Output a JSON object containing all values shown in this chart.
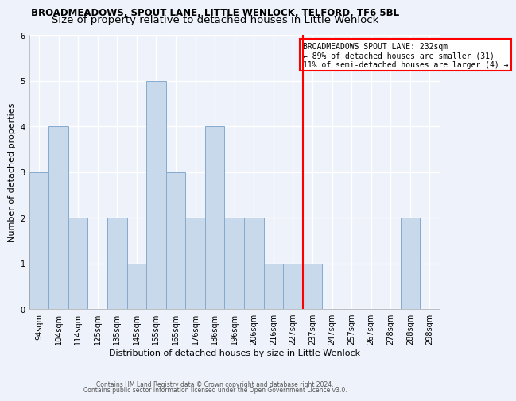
{
  "title1": "BROADMEADOWS, SPOUT LANE, LITTLE WENLOCK, TELFORD, TF6 5BL",
  "title2": "Size of property relative to detached houses in Little Wenlock",
  "xlabel": "Distribution of detached houses by size in Little Wenlock",
  "ylabel": "Number of detached properties",
  "categories": [
    "94sqm",
    "104sqm",
    "114sqm",
    "125sqm",
    "135sqm",
    "145sqm",
    "155sqm",
    "165sqm",
    "176sqm",
    "186sqm",
    "196sqm",
    "206sqm",
    "216sqm",
    "227sqm",
    "237sqm",
    "247sqm",
    "257sqm",
    "267sqm",
    "278sqm",
    "288sqm",
    "298sqm"
  ],
  "values": [
    3,
    4,
    2,
    0,
    2,
    1,
    5,
    3,
    2,
    4,
    2,
    2,
    1,
    1,
    1,
    0,
    0,
    0,
    0,
    2,
    0
  ],
  "bar_color": "#c9d9ec",
  "bar_edgecolor": "#85aace",
  "bar_linewidth": 0.7,
  "vline_x_index": 13.5,
  "vline_color": "red",
  "annotation_lines": [
    "BROADMEADOWS SPOUT LANE: 232sqm",
    "← 89% of detached houses are smaller (31)",
    "11% of semi-detached houses are larger (4) →"
  ],
  "background_color": "#eef2fa",
  "grid_color": "white",
  "ylim": [
    0,
    6
  ],
  "yticks": [
    0,
    1,
    2,
    3,
    4,
    5,
    6
  ],
  "footer1": "Contains HM Land Registry data © Crown copyright and database right 2024.",
  "footer2": "Contains public sector information licensed under the Open Government Licence v3.0.",
  "title1_fontsize": 8.5,
  "title2_fontsize": 9.5,
  "xlabel_fontsize": 8,
  "ylabel_fontsize": 8,
  "tick_fontsize": 7,
  "footer_fontsize": 5.5,
  "annot_fontsize": 7
}
